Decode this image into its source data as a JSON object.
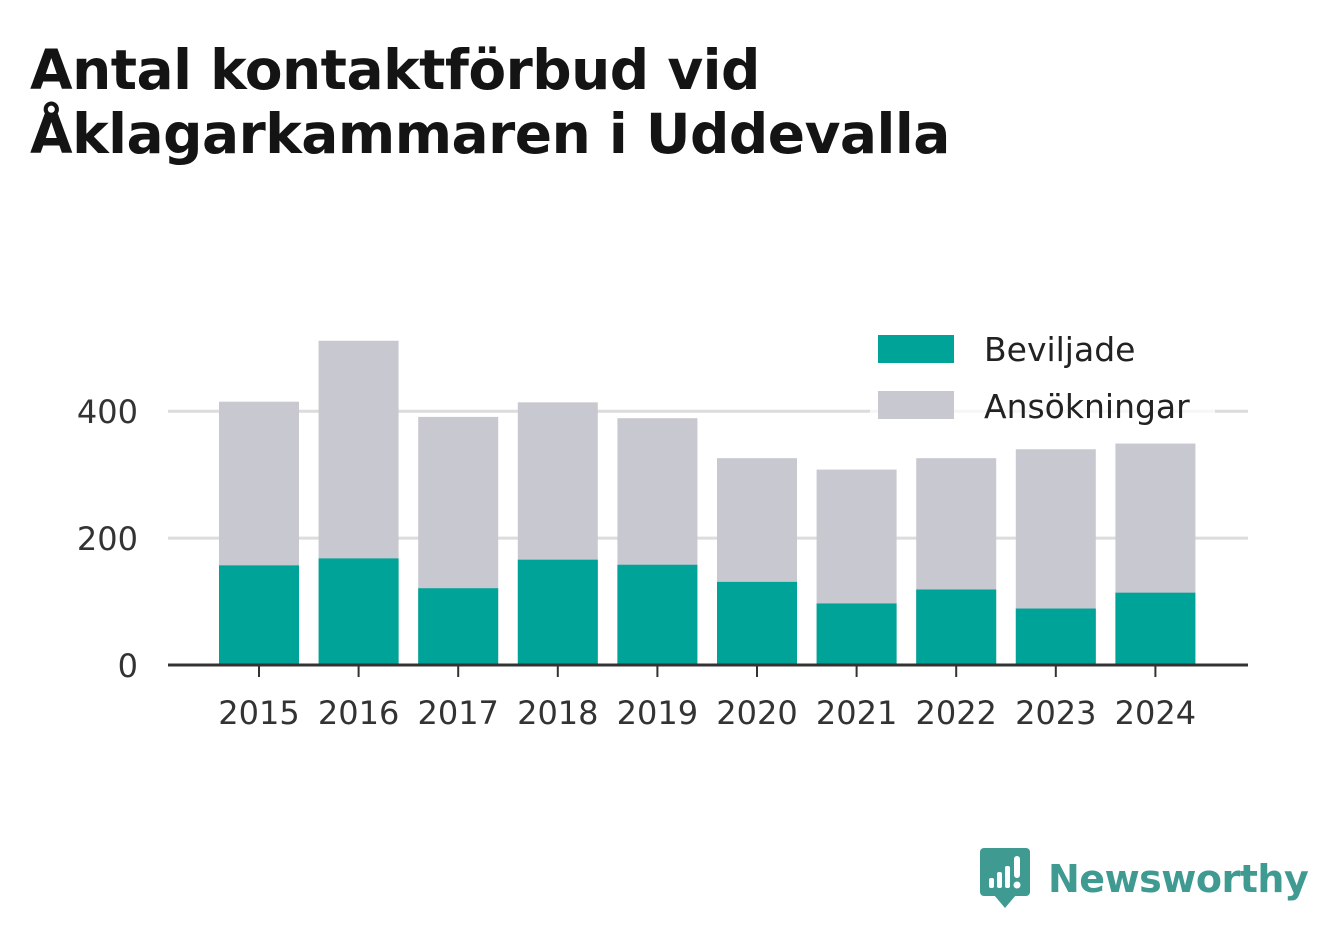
{
  "title": "Antal kontaktförbud vid Åklagarkammaren i Uddevalla",
  "brand": {
    "name": "Newsworthy",
    "icon": "newsworthy-logo-icon"
  },
  "colors": {
    "beviljade": "#00a398",
    "ansokningar": "#c8c8d0",
    "grid": "#dcdcdc",
    "axis": "#333333"
  },
  "chart_data": {
    "type": "bar",
    "stacking": "overlay",
    "categories": [
      "2015",
      "2016",
      "2017",
      "2018",
      "2019",
      "2020",
      "2021",
      "2022",
      "2023",
      "2024"
    ],
    "series": [
      {
        "name": "Beviljade",
        "values": [
          157,
          168,
          121,
          166,
          158,
          131,
          97,
          119,
          89,
          114
        ]
      },
      {
        "name": "Ansökningar",
        "values": [
          415,
          511,
          391,
          414,
          389,
          326,
          308,
          326,
          340,
          349
        ]
      }
    ],
    "y_ticks": [
      0,
      200,
      400
    ],
    "ylim": [
      0,
      560
    ],
    "grid": true,
    "legend": "top-right"
  }
}
